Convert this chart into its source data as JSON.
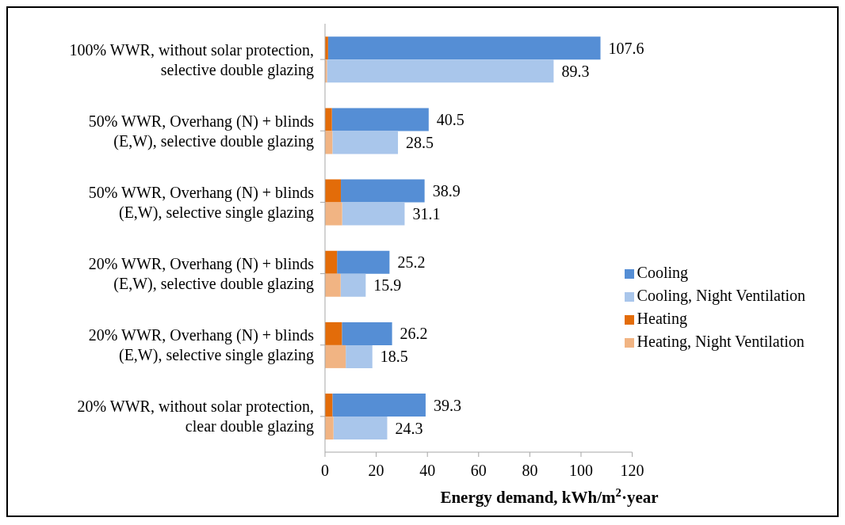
{
  "chart_data": {
    "type": "bar",
    "orientation": "horizontal",
    "categories": [
      "100% WWR, without solar protection, selective double glazing",
      "50% WWR, Overhang (N) + blinds (E,W), selective double glazing",
      "50% WWR, Overhang (N) + blinds (E,W), selective single glazing",
      "20% WWR, Overhang (N) + blinds (E,W), selective double glazing",
      "20% WWR, Overhang (N) + blinds (E,W), selective single glazing",
      "20% WWR, without solar protection, clear double glazing"
    ],
    "series": [
      {
        "name": "Cooling",
        "color": "#558ed5",
        "base": [
          1.2,
          2.7,
          6.2,
          4.7,
          6.6,
          2.9
        ],
        "values": [
          106.4,
          37.8,
          32.7,
          20.5,
          19.6,
          36.4
        ],
        "value_labels": [
          "107.6",
          "40.5",
          "38.9",
          "25.2",
          "26.2",
          "39.3"
        ]
      },
      {
        "name": "Cooling, Night Ventilation",
        "color": "#a9c6eb",
        "base": [
          0.8,
          2.9,
          6.7,
          6.1,
          8.1,
          3.3
        ],
        "values": [
          88.5,
          25.6,
          24.4,
          9.8,
          10.4,
          21.0
        ],
        "value_labels": [
          "89.3",
          "28.5",
          "31.1",
          "15.9",
          "18.5",
          "24.3"
        ]
      },
      {
        "name": "Heating",
        "color": "#e36c09",
        "values": [
          1.2,
          2.7,
          6.2,
          4.7,
          6.6,
          2.9
        ]
      },
      {
        "name": "Heating, Night Ventilation",
        "color": "#f1b483",
        "values": [
          0.8,
          2.9,
          6.7,
          6.1,
          8.1,
          3.3
        ]
      }
    ],
    "xlabel": "Energy demand, kWh/m$^{2}$·year",
    "xlim": [
      0,
      120
    ],
    "xticks": [
      0,
      20,
      40,
      60,
      80,
      100,
      120
    ],
    "grid": false,
    "legend": "right"
  }
}
